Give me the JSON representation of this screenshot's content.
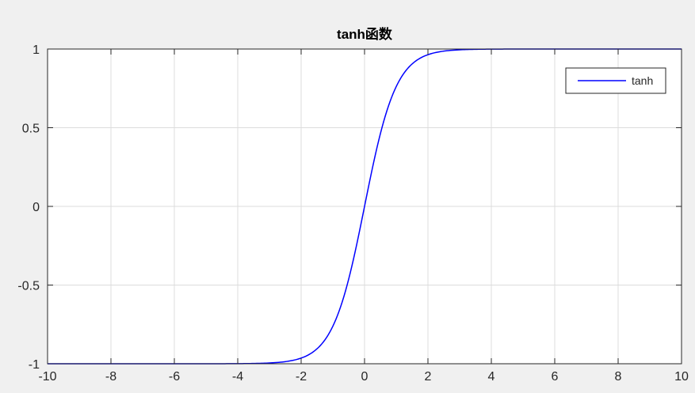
{
  "chart_data": {
    "type": "line",
    "title": "tanh函数",
    "xlabel": "",
    "ylabel": "",
    "xlim": [
      -10,
      10
    ],
    "ylim": [
      -1,
      1
    ],
    "xticks": [
      -10,
      -8,
      -6,
      -4,
      -2,
      0,
      2,
      4,
      6,
      8,
      10
    ],
    "yticks": [
      -1,
      -0.5,
      0,
      0.5,
      1
    ],
    "xtick_labels": [
      "-10",
      "-8",
      "-6",
      "-4",
      "-2",
      "0",
      "2",
      "4",
      "6",
      "8",
      "10"
    ],
    "ytick_labels": [
      "-1",
      "-0.5",
      "0",
      "0.5",
      "1"
    ],
    "grid": true,
    "legend_placement": "top-right",
    "series": [
      {
        "name": "tanh",
        "color": "#0000ff",
        "function": "tanh",
        "x": [
          -10,
          -8,
          -6,
          -4,
          -3,
          -2.5,
          -2,
          -1.5,
          -1.25,
          -1,
          -0.75,
          -0.5,
          -0.25,
          0,
          0.25,
          0.5,
          0.75,
          1,
          1.25,
          1.5,
          2,
          2.5,
          3,
          4,
          6,
          8,
          10
        ],
        "y": [
          -1.0,
          -1.0,
          -1.0,
          -0.999,
          -0.995,
          -0.987,
          -0.964,
          -0.905,
          -0.848,
          -0.762,
          -0.635,
          -0.462,
          -0.245,
          0.0,
          0.245,
          0.462,
          0.635,
          0.762,
          0.848,
          0.905,
          0.964,
          0.987,
          0.995,
          0.999,
          1.0,
          1.0,
          1.0
        ]
      }
    ]
  },
  "colors": {
    "figure_background": "#f0f0f0",
    "axes_background": "#ffffff",
    "grid": "#dcdcdc",
    "axis": "#262626"
  }
}
